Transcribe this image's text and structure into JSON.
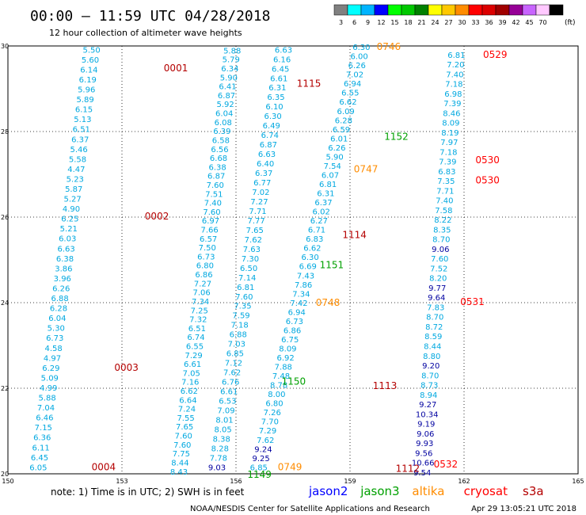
{
  "header": {
    "title": "00:00 – 11:59 UTC 04/28/2018",
    "subtitle": "12 hour collection of altimeter wave heights"
  },
  "colorbar": {
    "unit": "(ft)",
    "bins": [
      {
        "label": "3",
        "color": "#808080"
      },
      {
        "label": "6",
        "color": "#00ffff"
      },
      {
        "label": "9",
        "color": "#00b4ff"
      },
      {
        "label": "12",
        "color": "#0000ff"
      },
      {
        "label": "15",
        "color": "#00ff00"
      },
      {
        "label": "18",
        "color": "#00c800"
      },
      {
        "label": "21",
        "color": "#008000"
      },
      {
        "label": "24",
        "color": "#ffff00"
      },
      {
        "label": "27",
        "color": "#ffc800"
      },
      {
        "label": "30",
        "color": "#ff8c00"
      },
      {
        "label": "33",
        "color": "#ff0000"
      },
      {
        "label": "36",
        "color": "#dc0000"
      },
      {
        "label": "39",
        "color": "#a00000"
      },
      {
        "label": "42",
        "color": "#960096"
      },
      {
        "label": "45",
        "color": "#c864ff"
      },
      {
        "label": "70",
        "color": "#ffc8ff"
      },
      {
        "label": "",
        "color": "#000000"
      }
    ]
  },
  "footer": {
    "note": "note:  1) Time is in UTC;  2) SWH is in feet",
    "credit": "NOAA/NESDIS Center for Satellite Applications and Research",
    "timestamp": "Apr 29 13:05:21 UTC 2018"
  },
  "legend": [
    {
      "label": "jason2",
      "color": "#0000ff"
    },
    {
      "label": "jason3",
      "color": "#00a000"
    },
    {
      "label": "altika",
      "color": "#ff8c00"
    },
    {
      "label": "cryosat",
      "color": "#ff0000"
    },
    {
      "label": "s3a",
      "color": "#b40000"
    }
  ],
  "colors": {
    "track": "#00a8e0",
    "dark_value": "#0000a0"
  },
  "chart_data": {
    "type": "scatter",
    "xlim": [
      150,
      165
    ],
    "ylim": [
      20,
      30
    ],
    "xticks": [
      "150",
      "153",
      "156",
      "159",
      "162",
      "165"
    ],
    "yticks": [
      "20",
      "22",
      "24",
      "26",
      "28",
      "30"
    ],
    "grid": true,
    "tracks": [
      {
        "id": "t1",
        "vals": [
          "6.05",
          "6.45",
          "6.11",
          "6.36",
          "7.15",
          "6.46",
          "7.04",
          "5.88",
          "4.99",
          "5.09",
          "6.29",
          "4.97",
          "4.58",
          "6.73",
          "5.30",
          "6.04",
          "6.28",
          "6.88",
          "6.26",
          "3.96",
          "3.86",
          "6.38",
          "6.63",
          "6.03",
          "5.21",
          "6.25",
          "4.90",
          "5.27",
          "5.87",
          "5.23",
          "4.47",
          "5.58",
          "5.46",
          "6.37",
          "6.51",
          "5.13",
          "6.15",
          "5.89",
          "5.96",
          "6.19",
          "6.14",
          "5.60",
          "5.50"
        ],
        "start": [
          150.8,
          20.16
        ],
        "end": [
          152.2,
          29.92
        ]
      },
      {
        "id": "t2",
        "vals": [
          "8.43",
          "8.44",
          "7.75",
          "7.60",
          "7.60",
          "7.65",
          "7.55",
          "7.24",
          "6.64",
          "6.62",
          "7.16",
          "7.05",
          "6.61",
          "7.29",
          "6.55",
          "6.74",
          "6.51",
          "7.32",
          "7.25",
          "7.34",
          "7.06",
          "7.27",
          "6.86",
          "6.80",
          "6.73",
          "7.50",
          "6.57",
          "7.66",
          "6.97",
          "7.60",
          "7.40",
          "7.51",
          "7.60",
          "6.87",
          "6.38",
          "6.68",
          "6.56",
          "6.58",
          "6.39",
          "6.08",
          "6.04",
          "5.92",
          "6.87",
          "6.41",
          "5.90",
          "6.34",
          "5.79",
          "5.88"
        ],
        "start": [
          154.5,
          20.06
        ],
        "end": [
          155.9,
          29.9
        ]
      },
      {
        "id": "t3",
        "vals": [
          "9.03",
          "7.78",
          "8.28",
          "8.38",
          "8.05",
          "8.01",
          "7.09",
          "6.53",
          "6.61",
          "6.76",
          "7.62",
          "7.12",
          "6.85",
          "7.03",
          "6.88",
          "7.18",
          "7.59",
          "7.35",
          "7.60",
          "6.81",
          "7.14",
          "6.50",
          "7.30",
          "7.63",
          "7.62",
          "7.65",
          "7.77",
          "7.71",
          "7.27",
          "7.02",
          "6.77",
          "6.37",
          "6.40",
          "6.63",
          "6.87",
          "6.74",
          "6.49",
          "6.30",
          "6.10",
          "6.35",
          "6.31",
          "6.61",
          "6.45",
          "6.16",
          "6.63"
        ],
        "start": [
          155.5,
          20.16
        ],
        "end": [
          157.25,
          29.92
        ]
      },
      {
        "id": "t4",
        "vals": [
          "6.85",
          "9.25",
          "9.24",
          "7.62",
          "7.29",
          "7.70",
          "7.26",
          "6.80",
          "8.00",
          "8.78",
          "7.48",
          "7.88",
          "6.92",
          "8.09",
          "6.75",
          "6.86",
          "6.73",
          "6.94",
          "7.42",
          "7.34",
          "7.86",
          "7.43",
          "6.69",
          "6.30",
          "6.62",
          "6.83",
          "6.71",
          "6.27",
          "6.02",
          "6.37",
          "6.31",
          "6.81",
          "6.07",
          "7.54",
          "5.90",
          "6.26",
          "6.01",
          "6.59",
          "6.28",
          "6.09",
          "6.62",
          "6.55",
          "6.94",
          "7.02",
          "6.26",
          "6.00",
          "6.30"
        ],
        "start": [
          156.6,
          20.16
        ],
        "end": [
          159.3,
          29.98
        ]
      },
      {
        "id": "t5",
        "vals": [
          "9.54",
          "10.66",
          "9.56",
          "9.93",
          "9.06",
          "9.19",
          "10.34",
          "9.27",
          "8.94",
          "8.73",
          "8.70",
          "9.20",
          "8.80",
          "8.44",
          "8.59",
          "8.72",
          "8.70",
          "7.83",
          "9.64",
          "9.77",
          "8.20",
          "7.52",
          "7.60",
          "9.06",
          "8.70",
          "8.35",
          "8.22",
          "7.58",
          "7.40",
          "7.71",
          "7.35",
          "6.83",
          "7.39",
          "7.18",
          "7.97",
          "8.19",
          "8.09",
          "8.46",
          "7.39",
          "6.98",
          "7.18",
          "7.40",
          "7.20",
          "6.81"
        ],
        "start": [
          160.9,
          20.04
        ],
        "end": [
          161.8,
          29.8
        ]
      }
    ],
    "pass_labels": [
      {
        "time": "0001",
        "satellite": "s3a",
        "x": 154.1,
        "y": 29.48
      },
      {
        "time": "0002",
        "satellite": "s3a",
        "x": 153.6,
        "y": 26.02
      },
      {
        "time": "0003",
        "satellite": "s3a",
        "x": 152.8,
        "y": 22.48
      },
      {
        "time": "0004",
        "satellite": "s3a",
        "x": 152.2,
        "y": 20.16
      },
      {
        "time": "1115",
        "satellite": "s3a",
        "x": 157.6,
        "y": 29.12
      },
      {
        "time": "1114",
        "satellite": "s3a",
        "x": 158.8,
        "y": 25.58
      },
      {
        "time": "1113",
        "satellite": "s3a",
        "x": 159.6,
        "y": 22.06
      },
      {
        "time": "1112",
        "satellite": "s3a",
        "x": 160.2,
        "y": 20.12
      },
      {
        "time": "1152",
        "satellite": "jason3",
        "x": 159.9,
        "y": 27.88
      },
      {
        "time": "1151",
        "satellite": "jason3",
        "x": 158.2,
        "y": 24.88
      },
      {
        "time": "1150",
        "satellite": "jason3",
        "x": 157.2,
        "y": 22.16
      },
      {
        "time": "1149",
        "satellite": "jason3",
        "x": 156.3,
        "y": 19.98
      },
      {
        "time": "0746",
        "satellite": "altika",
        "x": 159.7,
        "y": 29.98
      },
      {
        "time": "0747",
        "satellite": "altika",
        "x": 159.1,
        "y": 27.12
      },
      {
        "time": "0748",
        "satellite": "altika",
        "x": 158.1,
        "y": 24.0
      },
      {
        "time": "0749",
        "satellite": "altika",
        "x": 157.1,
        "y": 20.16
      },
      {
        "time": "0529",
        "satellite": "cryosat",
        "x": 162.5,
        "y": 29.8
      },
      {
        "time": "0530",
        "satellite": "cryosat",
        "x": 162.3,
        "y": 27.33
      },
      {
        "time": "0530",
        "satellite": "cryosat",
        "x": 162.3,
        "y": 26.86
      },
      {
        "time": "0531",
        "satellite": "cryosat",
        "x": 161.9,
        "y": 24.02
      },
      {
        "time": "0532",
        "satellite": "cryosat",
        "x": 161.2,
        "y": 20.22
      }
    ]
  }
}
